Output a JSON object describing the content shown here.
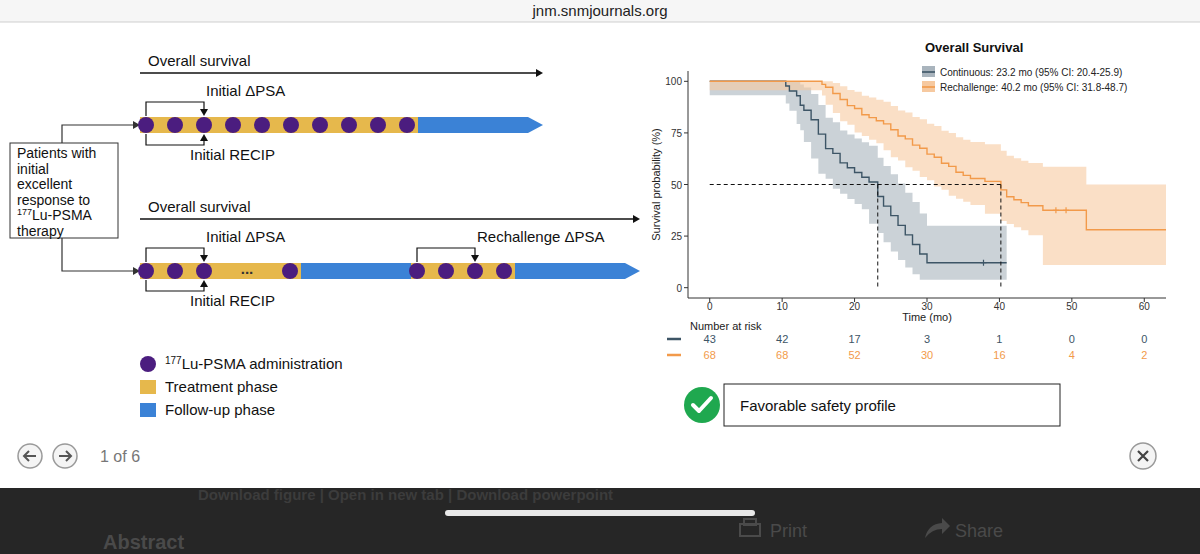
{
  "page": {
    "url": "jnm.snmjournals.org",
    "pager": "1 of 6",
    "links": "Download figure | Open in new tab | Download powerpoint",
    "section": "Abstract",
    "actions": [
      "Print",
      "Share"
    ]
  },
  "diagram": {
    "source_box": [
      "Patients with",
      "initial",
      "excellent",
      "response to",
      [
        "177",
        "Lu-PSMA"
      ],
      "therapy"
    ],
    "timelines": [
      {
        "label": "Overall survival",
        "phases": [
          {
            "color": "#e6b84c",
            "doses": [
              10
            ]
          },
          {
            "color": "#3b82d6"
          }
        ],
        "brackets": [
          {
            "label": "Initial ΔPSA",
            "side": "above",
            "phase": 0,
            "from": 0,
            "to": 2
          },
          {
            "label": "Initial RECIP",
            "side": "below",
            "phase": 0,
            "from": 0,
            "to": 2
          }
        ]
      },
      {
        "label": "Overall survival",
        "phases": [
          {
            "color": "#e6b84c",
            "doses": [
              3,
              1
            ],
            "gap": "..."
          },
          {
            "color": "#3b82d6"
          },
          {
            "color": "#e6b84c",
            "doses": [
              4
            ]
          },
          {
            "color": "#3b82d6"
          }
        ],
        "brackets": [
          {
            "label": "Initial ΔPSA",
            "side": "above",
            "phase": 0,
            "from": 0,
            "to": 2
          },
          {
            "label": "Initial RECIP",
            "side": "below",
            "phase": 0,
            "from": 0,
            "to": 2
          },
          {
            "label": "Rechallenge ΔPSA",
            "side": "above",
            "phase": 2,
            "from": 0,
            "to": 2
          }
        ]
      }
    ],
    "dose_color": "#4b1d7f",
    "legend": [
      {
        "sup": "177",
        "text": "Lu-PSMA administration",
        "color": "#4b1d7f",
        "marker": "circle"
      },
      {
        "text": "Treatment phase",
        "color": "#e6b84c",
        "marker": "square"
      },
      {
        "text": "Follow-up phase",
        "color": "#3b82d6",
        "marker": "square"
      }
    ],
    "badge": "Favorable safety profile"
  },
  "chart_data": {
    "type": "line",
    "title": "Overall Survival",
    "x_label": "Time (mo)",
    "y_label": "Survival probability (%)",
    "xlim": [
      -3,
      63
    ],
    "ylim": [
      -5,
      105
    ],
    "xticks": [
      0,
      10,
      20,
      30,
      40,
      50,
      60
    ],
    "yticks": [
      0,
      25,
      50,
      75,
      100
    ],
    "grid": false,
    "legend": "top right",
    "line_style": "step",
    "reference_lines": {
      "y": 50,
      "x": [
        23.2,
        40.2
      ]
    },
    "risk_table_title": "Number at risk",
    "series": [
      {
        "name": "Continuous: 23.2 mo (95% CI: 20.4-25.9)",
        "color": "#3d5566",
        "x": [
          0,
          10.5,
          11,
          12,
          12.5,
          13,
          14,
          15,
          16,
          17,
          18,
          19,
          20,
          21,
          22,
          23.2,
          24,
          25,
          26,
          27,
          28,
          29,
          30,
          41
        ],
        "values": [
          100,
          97.7,
          95.3,
          93,
          88.4,
          86,
          81.4,
          74.4,
          67.4,
          65.1,
          60.5,
          58.1,
          55.8,
          53.5,
          51.2,
          44.2,
          39.5,
          34.9,
          30.2,
          25.6,
          20.9,
          16.3,
          12.1,
          12.1
        ],
        "ci_lower": [
          100,
          93.3,
          89.2,
          85.7,
          79.3,
          76.3,
          70.6,
          62.6,
          55.2,
          52.8,
          48,
          45.5,
          43,
          40.5,
          38,
          31,
          26.5,
          22,
          17.5,
          13.4,
          9.8,
          6.5,
          3.8,
          3.8
        ],
        "ci_upper": [
          100,
          100,
          100,
          100,
          98.5,
          97,
          93.8,
          88.5,
          82.3,
          80.2,
          76.2,
          74.2,
          72.3,
          70.5,
          68.8,
          63,
          59,
          55,
          50.5,
          46,
          41.5,
          36,
          30,
          30
        ],
        "censored": [
          37.8
        ],
        "at_risk": [
          43,
          42,
          17,
          3,
          1,
          0,
          0
        ]
      },
      {
        "name": "Rechallenge: 40.2 mo (95% CI: 31.8-48.7)",
        "color": "#f29a4a",
        "x": [
          0,
          15.5,
          16,
          17,
          18,
          19,
          20,
          21,
          22,
          23,
          24,
          25,
          26,
          27,
          28,
          29,
          30,
          31,
          32,
          33,
          34,
          35,
          36,
          38,
          40.2,
          41,
          42,
          43,
          44,
          46,
          52,
          63
        ],
        "values": [
          100,
          98.5,
          97.1,
          94.1,
          91.2,
          88.2,
          86.8,
          83.8,
          82.4,
          80.9,
          79.4,
          76.5,
          73.5,
          72.1,
          69.1,
          67.6,
          64.7,
          63.2,
          60.3,
          58.8,
          55.9,
          54.4,
          52.9,
          51.5,
          47.4,
          44.1,
          42.6,
          41.2,
          39.7,
          37.5,
          28.1,
          28.1
        ],
        "ci_lower": [
          100,
          95.7,
          93.1,
          88.7,
          84.7,
          80.7,
          78.9,
          75.2,
          73.5,
          71.7,
          70,
          66.6,
          63.2,
          61.6,
          58.3,
          56.7,
          53.6,
          52,
          49,
          47.5,
          44.6,
          43.1,
          41.6,
          40.1,
          35.8,
          32.3,
          30.8,
          29.3,
          27.8,
          25.4,
          11,
          11
        ],
        "ci_upper": [
          100,
          100,
          100,
          99.2,
          97.6,
          95.8,
          94.9,
          93,
          92.2,
          91.1,
          90.1,
          88.1,
          85.9,
          84.9,
          82.7,
          81.6,
          79.4,
          78.3,
          76.1,
          75,
          72.9,
          71.7,
          70.6,
          69.5,
          66.4,
          63.9,
          62.7,
          61.5,
          60.4,
          58.6,
          50,
          50
        ],
        "censored": [
          47.8,
          49.2
        ],
        "at_risk": [
          68,
          68,
          52,
          30,
          16,
          4,
          2
        ]
      }
    ]
  }
}
